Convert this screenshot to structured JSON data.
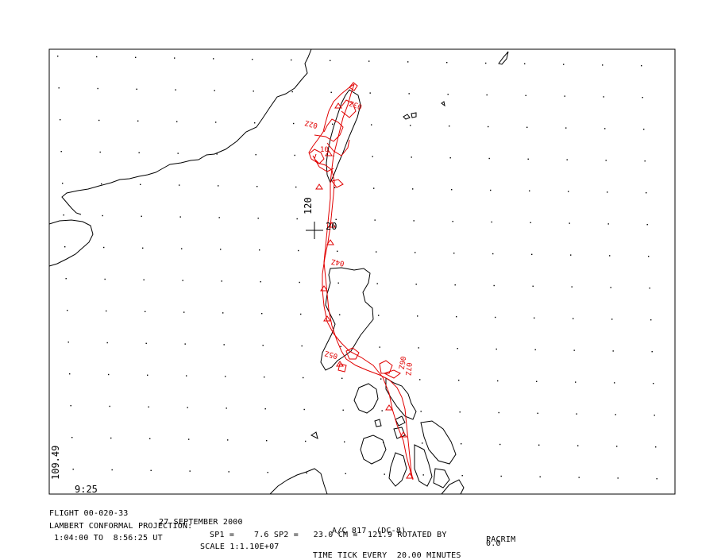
{
  "map": {
    "lat_label": "20",
    "lon_label": "120",
    "corner_lon_label": "109.49",
    "corner_time_label": "9:25",
    "track_color": "#e00000",
    "coast_color": "#000000",
    "time_ticks": [
      "02Z",
      "03Z",
      "04Z",
      "05Z",
      "06Z",
      "07Z",
      "08Z",
      "10"
    ]
  },
  "footer": {
    "flight": "FLIGHT 00-020-33",
    "date": "27 SEPTEMBER 2000",
    "aircraft": "A/C 817  (DC-8)",
    "campaign": "PACRIM",
    "projection": "LAMBERT CONFORMAL PROJECTION:",
    "sp1": "SP1 =    7.6 SP2 =   23.0 CM =  121.9 ROTATED BY",
    "rotation": "0.0",
    "time_range": "1:04:00 TO  8:56:25 UT",
    "scale": "SCALE 1:1.10E+07",
    "time_tick": "TIME TICK EVERY  20.00 MINUTES"
  }
}
